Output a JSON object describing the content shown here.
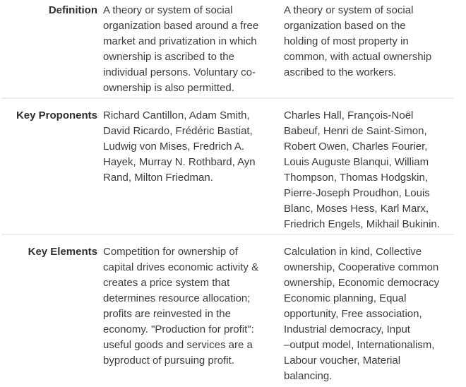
{
  "page": {
    "background_color": "#ffffff",
    "divider_color": "#ededed",
    "label_text_color": "#2f2f2f",
    "body_text_color": "#3c3c3c"
  },
  "table": {
    "rows": [
      {
        "label": "Definition",
        "col_a": "A theory or system of social\norganization based around a free\nmarket and privatization in which\nownership is ascribed to the\nindividual persons. Voluntary co-\nownership is also permitted.",
        "col_b": "A theory or system of social\norganization based on the\nholding of most property in\ncommon, with actual ownership\nascribed to the workers."
      },
      {
        "label": "Key Proponents",
        "col_a": "Richard Cantillon, Adam Smith,\nDavid Ricardo, Frédéric Bastiat,\nLudwig von Mises, Fredrich A.\nHayek, Murray N. Rothbard, Ayn\nRand, Milton Friedman.",
        "col_b": "Charles Hall, François-Noël\nBabeuf, Henri de Saint-Simon,\nRobert Owen, Charles Fourier,\nLouis Auguste Blanqui, William\nThompson, Thomas Hodgskin,\nPierre-Joseph Proudhon, Louis\nBlanc, Moses Hess, Karl Marx,\nFriedrich Engels, Mikhail Bukinin."
      },
      {
        "label": "Key Elements",
        "col_a": "Competition for ownership of\ncapital drives economic activity &\ncreates a price system that\ndetermines resource allocation;\nprofits are reinvested in the\neconomy. \"Production for profit\":\nuseful goods and services are a\nbyproduct of pursuing profit.",
        "col_b": "Calculation in kind, Collective\nownership, Cooperative common\nownership, Economic democracy\nEconomic planning, Equal\nopportunity, Free association,\nIndustrial democracy, Input\n–output model, Internationalism,\nLabour voucher, Material\nbalancing."
      }
    ]
  }
}
